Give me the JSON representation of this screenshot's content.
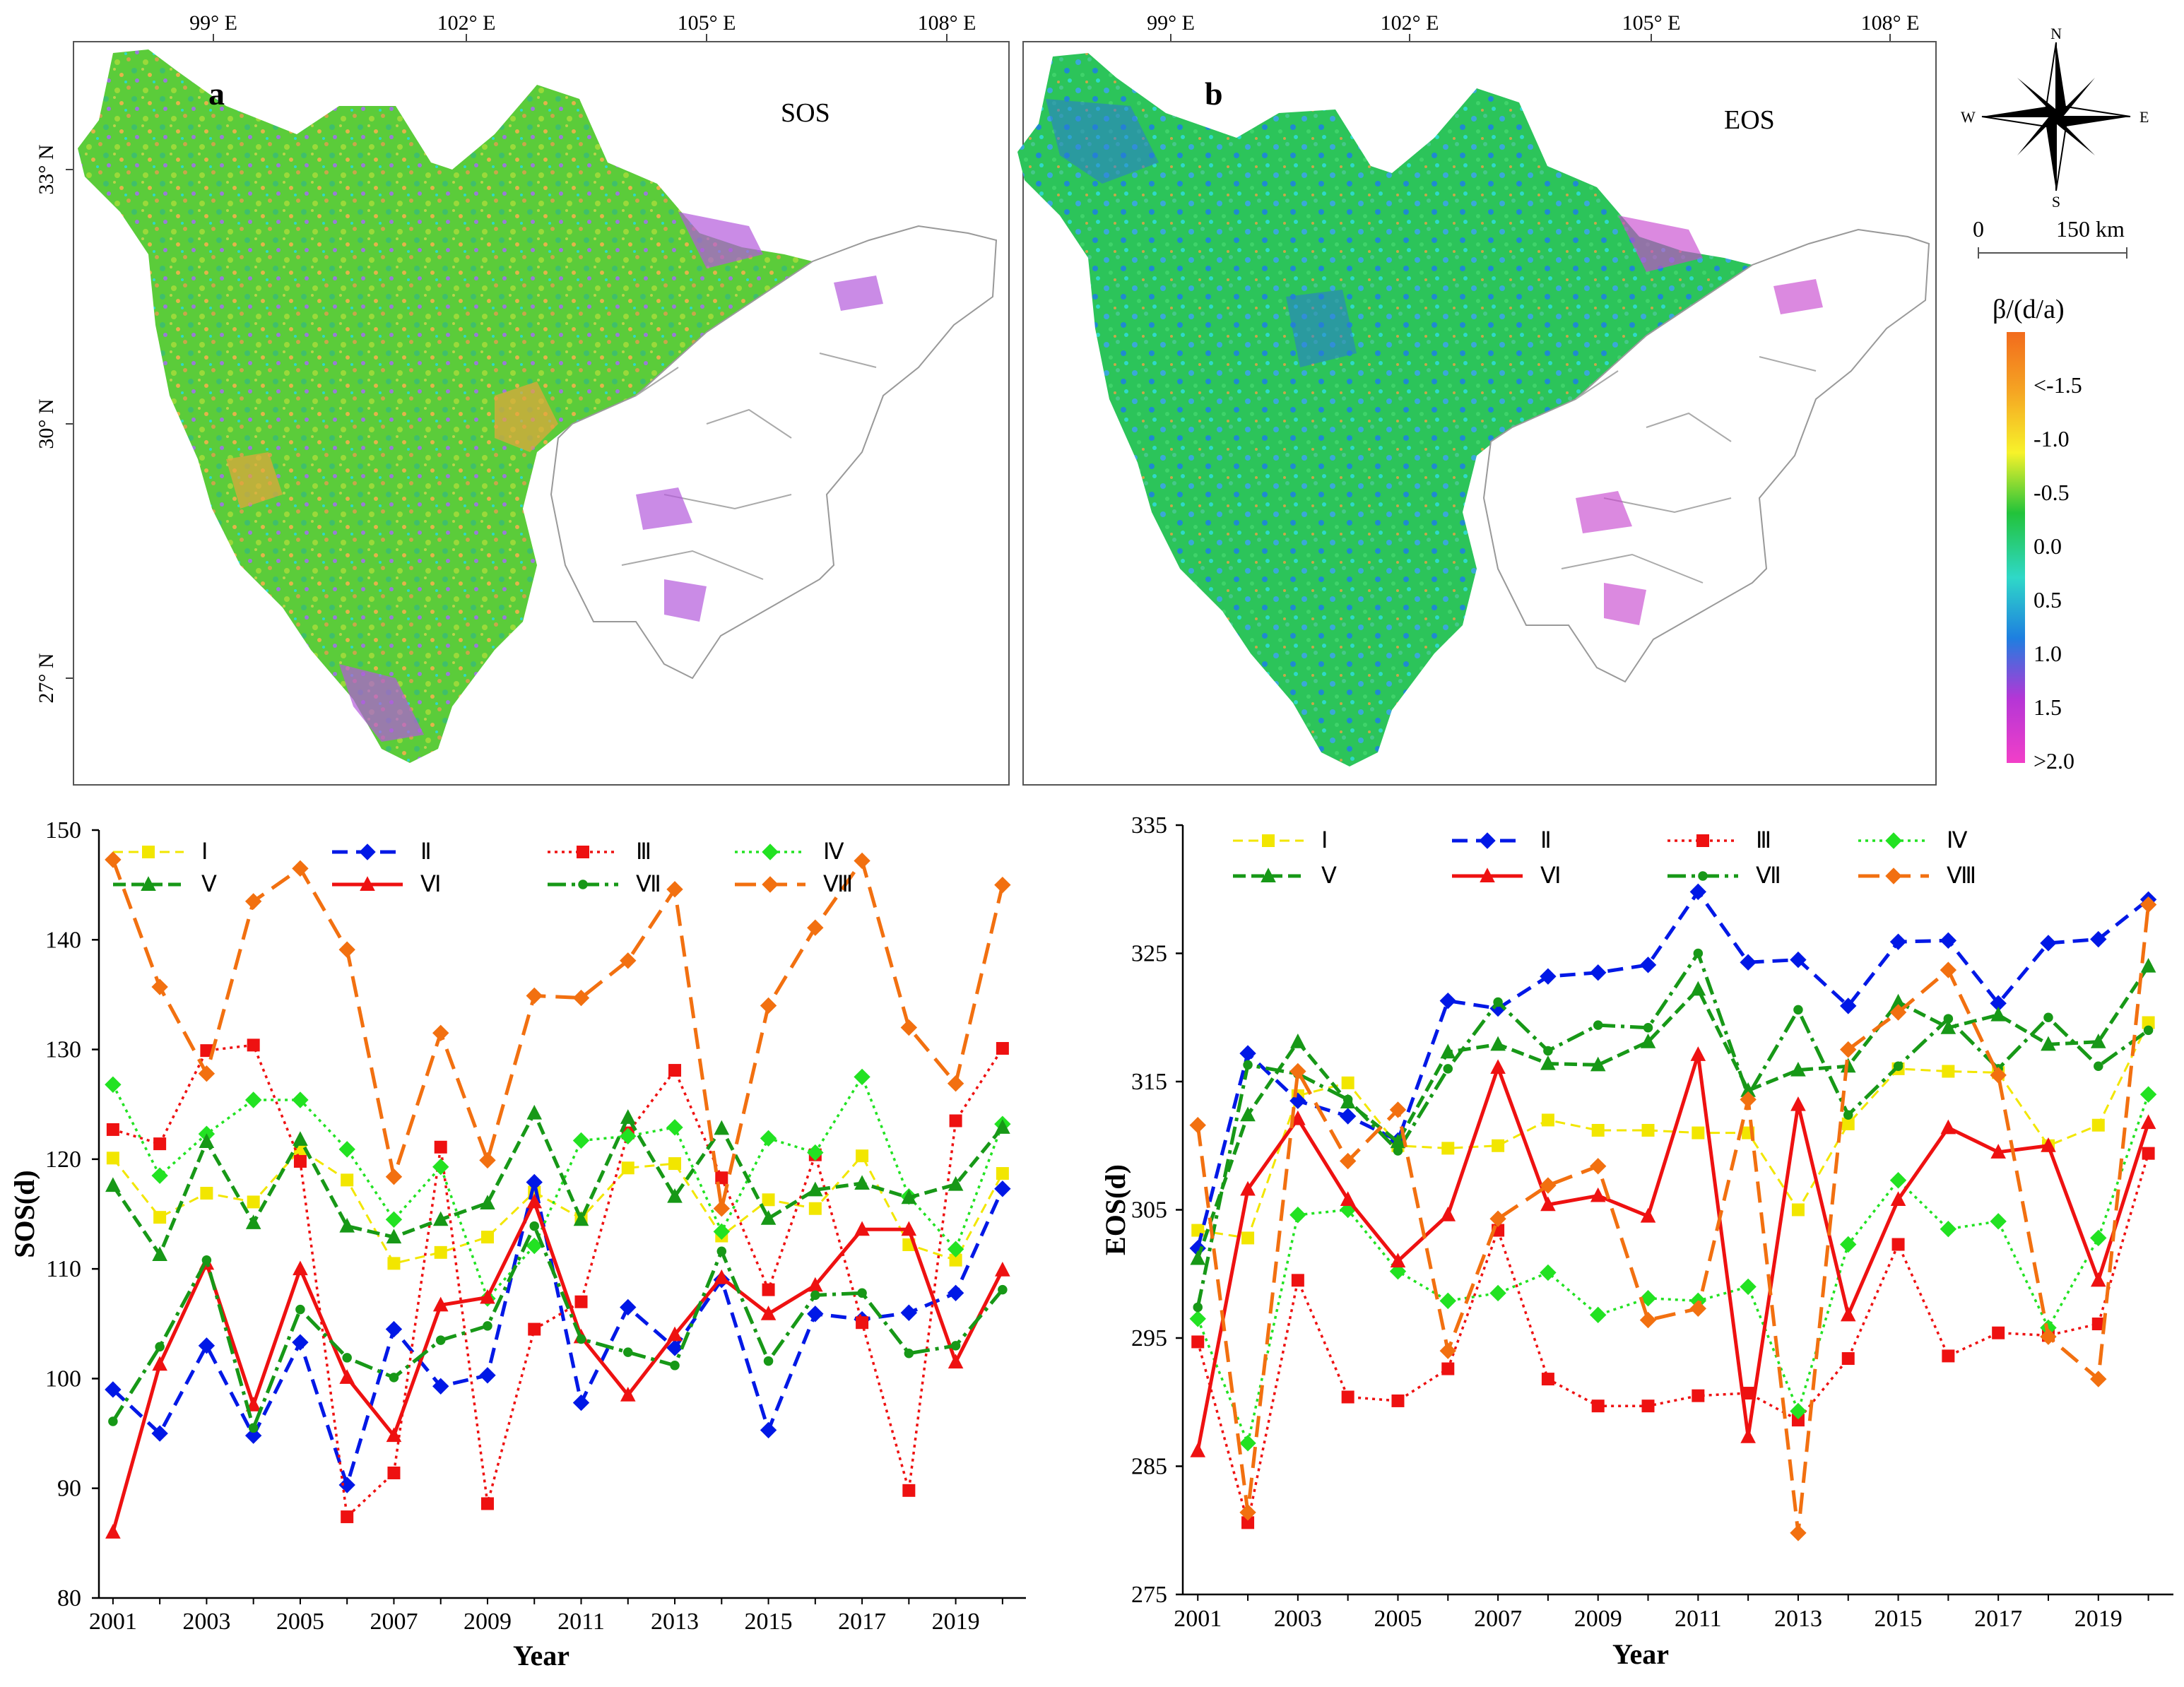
{
  "map_a": {
    "panel_label": "a",
    "title": "SOS",
    "lon_ticks": [
      "99° E",
      "102° E",
      "105° E",
      "108° E"
    ],
    "lat_ticks": [
      "33° N",
      "30° N",
      "27° N"
    ]
  },
  "map_b": {
    "panel_label": "b",
    "title": "EOS",
    "lon_ticks": [
      "99° E",
      "102° E",
      "105° E",
      "108° E"
    ]
  },
  "compass": {
    "n": "N",
    "s": "S",
    "e": "E",
    "w": "W"
  },
  "scale_bar": {
    "start": "0",
    "end": "150 km"
  },
  "legend": {
    "title": "β/(d/a)",
    "labels": [
      "<-1.5",
      "-1.0",
      "-0.5",
      "0.0",
      "0.5",
      "1.0",
      "1.5",
      ">2.0"
    ],
    "colors": [
      "#f26b1d",
      "#f5a623",
      "#f7f22a",
      "#22c33a",
      "#2fd8c8",
      "#1e7fe0",
      "#b436d6",
      "#f23fc8"
    ]
  },
  "chart_data": [
    {
      "type": "line",
      "title": "",
      "xlabel": "Year",
      "ylabel": "SOS(d)",
      "ylim": [
        80,
        150
      ],
      "yticks": [
        80,
        90,
        100,
        110,
        120,
        130,
        140,
        150
      ],
      "xtick_labels": [
        "2001",
        "2003",
        "2005",
        "2007",
        "2009",
        "2011",
        "2013",
        "2015",
        "2017",
        "2019"
      ],
      "x": [
        2001,
        2002,
        2003,
        2004,
        2005,
        2006,
        2007,
        2008,
        2009,
        2010,
        2011,
        2012,
        2013,
        2014,
        2015,
        2016,
        2017,
        2018,
        2019,
        2020
      ],
      "series": [
        {
          "name": "Ⅰ",
          "color": "#f2e600",
          "values": [
            120.1,
            114.7,
            116.9,
            116.1,
            120.9,
            118.1,
            110.5,
            111.5,
            112.9,
            117.0,
            114.6,
            119.2,
            119.6,
            113.0,
            116.3,
            115.5,
            120.3,
            112.2,
            110.8,
            118.7
          ]
        },
        {
          "name": "Ⅱ",
          "color": "#0018e6",
          "values": [
            99.0,
            95.0,
            103.0,
            94.8,
            103.3,
            90.3,
            104.5,
            99.3,
            100.3,
            117.9,
            97.8,
            106.5,
            102.8,
            109.0,
            95.3,
            105.9,
            105.4,
            106.0,
            107.8,
            117.3
          ]
        },
        {
          "name": "Ⅲ",
          "color": "#ee1111",
          "values": [
            122.7,
            121.4,
            129.9,
            130.4,
            119.8,
            87.4,
            91.4,
            121.1,
            88.6,
            104.5,
            107.0,
            122.4,
            128.1,
            118.3,
            108.1,
            120.4,
            105.1,
            89.8,
            123.5,
            130.1
          ]
        },
        {
          "name": "Ⅳ",
          "color": "#22e222",
          "values": [
            126.8,
            118.5,
            122.3,
            125.4,
            125.4,
            120.9,
            114.5,
            119.3,
            107.3,
            112.1,
            121.7,
            122.1,
            122.9,
            113.4,
            121.9,
            120.6,
            127.5,
            116.6,
            111.8,
            123.2
          ]
        },
        {
          "name": "Ⅴ",
          "color": "#179817",
          "values": [
            117.6,
            111.3,
            121.6,
            114.2,
            121.8,
            113.9,
            112.9,
            114.5,
            116.0,
            124.2,
            114.5,
            123.8,
            116.6,
            122.8,
            114.6,
            117.2,
            117.8,
            116.5,
            117.7,
            122.9
          ]
        },
        {
          "name": "Ⅵ",
          "color": "#ee1111",
          "values": [
            86.0,
            101.3,
            110.5,
            97.6,
            110.0,
            100.1,
            94.8,
            106.7,
            107.4,
            116.1,
            103.8,
            98.5,
            104.0,
            109.2,
            105.9,
            108.5,
            113.6,
            113.6,
            101.5,
            109.9
          ]
        },
        {
          "name": "Ⅶ",
          "color": "#179817",
          "values": [
            96.1,
            102.9,
            110.8,
            95.5,
            106.3,
            101.9,
            100.1,
            103.5,
            104.8,
            113.9,
            103.6,
            102.4,
            101.2,
            111.6,
            101.6,
            107.6,
            107.8,
            102.3,
            103.0,
            108.1
          ]
        },
        {
          "name": "Ⅷ",
          "color": "#f27010",
          "values": [
            147.3,
            135.7,
            127.8,
            143.5,
            146.5,
            139.1,
            118.4,
            131.5,
            119.9,
            134.9,
            134.7,
            138.1,
            144.6,
            115.5,
            134.0,
            141.1,
            147.2,
            132.0,
            126.9,
            145.0
          ]
        }
      ]
    },
    {
      "type": "line",
      "title": "",
      "xlabel": "Year",
      "ylabel": "EOS(d)",
      "ylim": [
        275,
        335
      ],
      "yticks": [
        275,
        285,
        295,
        305,
        315,
        325,
        335
      ],
      "xtick_labels": [
        "2001",
        "2003",
        "2005",
        "2007",
        "2009",
        "2011",
        "2013",
        "2015",
        "2017",
        "2019"
      ],
      "x": [
        2001,
        2002,
        2003,
        2004,
        2005,
        2006,
        2007,
        2008,
        2009,
        2010,
        2011,
        2012,
        2013,
        2014,
        2015,
        2016,
        2017,
        2018,
        2019,
        2020
      ],
      "series": [
        {
          "name": "Ⅰ",
          "color": "#f2e600",
          "values": [
            303.4,
            302.8,
            313.9,
            314.9,
            310.0,
            309.8,
            310.0,
            312.0,
            311.2,
            311.2,
            311.0,
            311.0,
            305.0,
            311.7,
            316.0,
            315.8,
            315.7,
            310.0,
            311.6,
            319.6
          ]
        },
        {
          "name": "Ⅱ",
          "color": "#0018e6",
          "values": [
            302.0,
            317.2,
            313.5,
            312.3,
            310.4,
            321.3,
            320.7,
            323.2,
            323.5,
            324.1,
            329.8,
            324.3,
            324.5,
            320.9,
            325.9,
            326.0,
            321.1,
            325.8,
            326.1,
            329.2
          ]
        },
        {
          "name": "Ⅲ",
          "color": "#ee1111",
          "values": [
            294.7,
            280.6,
            299.5,
            290.4,
            290.1,
            292.6,
            303.4,
            291.8,
            289.7,
            289.7,
            290.5,
            290.7,
            288.6,
            293.4,
            302.3,
            293.6,
            295.4,
            295.2,
            296.1,
            309.4
          ]
        },
        {
          "name": "Ⅳ",
          "color": "#22e222",
          "values": [
            296.5,
            286.8,
            304.6,
            305.0,
            300.2,
            297.9,
            298.5,
            300.1,
            296.8,
            298.1,
            297.9,
            299.0,
            289.3,
            302.3,
            307.3,
            303.5,
            304.1,
            295.8,
            302.8,
            314.0
          ]
        },
        {
          "name": "Ⅴ",
          "color": "#179817",
          "values": [
            301.2,
            312.4,
            318.1,
            313.4,
            310.3,
            317.3,
            317.9,
            316.4,
            316.3,
            318.1,
            322.2,
            314.3,
            315.9,
            316.2,
            321.2,
            319.2,
            320.2,
            317.9,
            318.1,
            324.0
          ]
        },
        {
          "name": "Ⅵ",
          "color": "#ee1111",
          "values": [
            286.2,
            306.6,
            312.1,
            305.8,
            301.0,
            304.6,
            316.1,
            305.4,
            306.1,
            304.5,
            317.1,
            287.3,
            313.2,
            296.8,
            305.8,
            311.4,
            309.5,
            310.0,
            299.5,
            311.8
          ]
        },
        {
          "name": "Ⅶ",
          "color": "#179817",
          "values": [
            297.4,
            316.3,
            315.6,
            313.6,
            309.6,
            316.0,
            321.2,
            317.4,
            319.4,
            319.2,
            325.0,
            313.9,
            320.6,
            312.4,
            316.2,
            319.9,
            316.0,
            320.0,
            316.2,
            319.0
          ]
        },
        {
          "name": "Ⅷ",
          "color": "#f27010",
          "values": [
            311.6,
            281.4,
            315.8,
            308.8,
            312.8,
            294.0,
            304.3,
            306.9,
            308.4,
            296.4,
            297.3,
            313.6,
            279.8,
            317.5,
            320.4,
            323.7,
            315.5,
            295.1,
            291.8,
            328.8
          ]
        }
      ]
    }
  ]
}
